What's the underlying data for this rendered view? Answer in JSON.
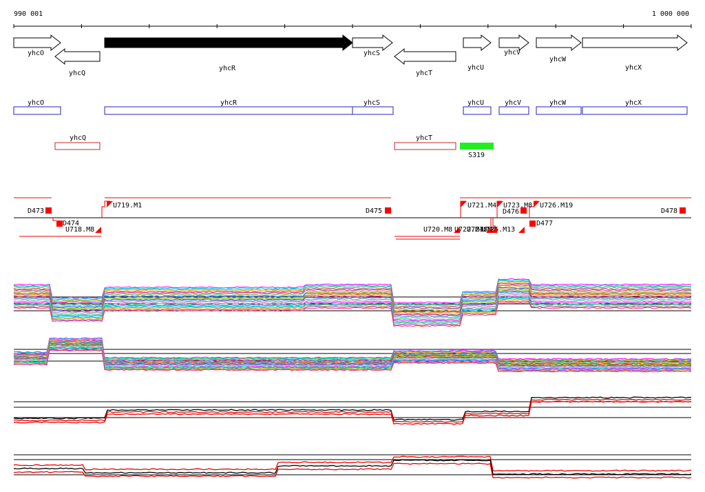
{
  "ruler": {
    "start_label": "990 001",
    "end_label": "1 000 000"
  },
  "genes": [
    {
      "name": "yhcO",
      "strand": "+"
    },
    {
      "name": "yhcQ",
      "strand": "-"
    },
    {
      "name": "yhcR",
      "strand": "+",
      "highlighted": true
    },
    {
      "name": "yhcS",
      "strand": "+"
    },
    {
      "name": "yhcT",
      "strand": "-"
    },
    {
      "name": "yhcU",
      "strand": "+"
    },
    {
      "name": "yhcV",
      "strand": "+"
    },
    {
      "name": "yhcW",
      "strand": "+"
    },
    {
      "name": "yhcX",
      "strand": "+"
    }
  ],
  "plus_boxes": [
    "yhcO",
    "yhcR",
    "yhcS",
    "yhcU",
    "yhcV",
    "yhcW",
    "yhcX"
  ],
  "minus_boxes": [
    "yhcQ",
    "yhcT"
  ],
  "feature": {
    "label": "S319",
    "color": "#22ee22"
  },
  "markers": [
    {
      "label": "D473"
    },
    {
      "label": "D474"
    },
    {
      "label": "U718.M8"
    },
    {
      "label": "U719.M1"
    },
    {
      "label": "D475"
    },
    {
      "label": "U720.M8"
    },
    {
      "label": "U722.M18"
    },
    {
      "label": "U724.M4"
    },
    {
      "label": "U725.M13"
    },
    {
      "label": "U721.M4"
    },
    {
      "label": "U723.M8"
    },
    {
      "label": "D476"
    },
    {
      "label": "D477"
    },
    {
      "label": "U726.M19"
    },
    {
      "label": "D478"
    }
  ],
  "colors": {
    "plus_box": "#2222bb",
    "minus_box": "#cc2222",
    "marker": "#ff0000",
    "gene_fill": "#000000",
    "trace_red": "#ee0000"
  }
}
